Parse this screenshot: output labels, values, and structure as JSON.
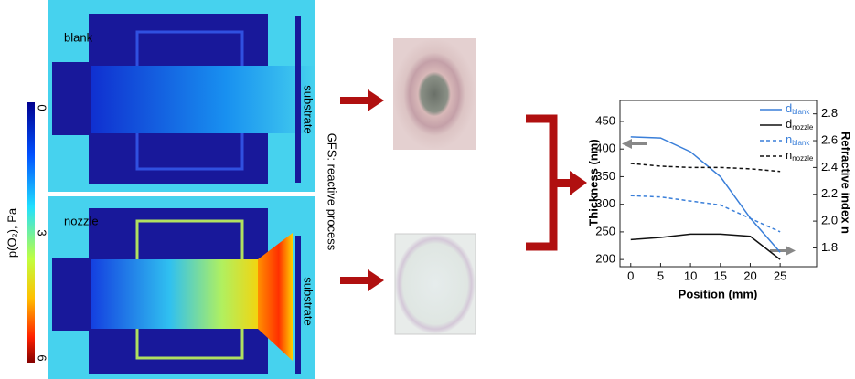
{
  "simulation": {
    "panels": [
      {
        "label": "blank",
        "substrate": "substrate"
      },
      {
        "label": "nozzle",
        "substrate": "substrate"
      }
    ],
    "colorbar": {
      "label": "p(O₂), Pa",
      "lim": [
        0,
        6
      ],
      "ticks": [
        0,
        3,
        6
      ]
    },
    "process_label": "GFS: reactive process"
  },
  "chart_data": {
    "type": "line",
    "xlabel": "Position (mm)",
    "ylabel": "Thickness (nm)",
    "y2label": "Refractive index n",
    "x": [
      0,
      5,
      10,
      15,
      20,
      25
    ],
    "xlim": [
      -1.8,
      31.1
    ],
    "xticks": [
      0,
      5,
      10,
      15,
      20,
      25
    ],
    "ylim": [
      187,
      488
    ],
    "yticks": [
      200,
      250,
      300,
      350,
      400,
      450
    ],
    "y2lim": [
      1.66,
      2.9
    ],
    "y2ticks": [
      1.8,
      2.0,
      2.2,
      2.4,
      2.6,
      2.8
    ],
    "legend": "upper right",
    "series": [
      {
        "name": "dblank",
        "color": "#3a7fd9",
        "dash": false,
        "values": [
          422,
          420,
          395,
          350,
          275,
          213
        ]
      },
      {
        "name": "dnozzle",
        "color": "#111111",
        "dash": false,
        "values": [
          236,
          240,
          246,
          246,
          242,
          200
        ]
      },
      {
        "name": "nblank",
        "color": "#3a7fd9",
        "dash": true,
        "axis": "y2",
        "values": [
          2.19,
          2.18,
          2.15,
          2.12,
          2.02,
          1.92
        ]
      },
      {
        "name": "nnozzle",
        "color": "#111111",
        "dash": true,
        "axis": "y2",
        "values": [
          2.43,
          2.41,
          2.4,
          2.4,
          2.39,
          2.37
        ]
      }
    ]
  }
}
